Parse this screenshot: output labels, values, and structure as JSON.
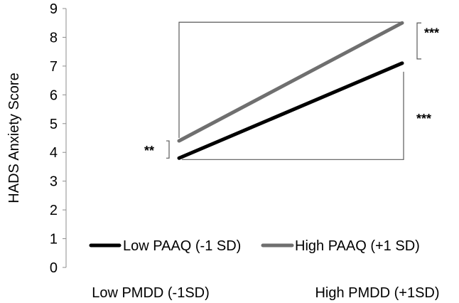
{
  "chart_data": {
    "type": "line",
    "title": "",
    "xlabel": "",
    "ylabel": "HADS Anxiety Score",
    "categories": [
      "Low PMDD (-1SD)",
      "High PMDD (+1SD)"
    ],
    "ylim": [
      0,
      9
    ],
    "yticks": [
      "0",
      "1",
      "2",
      "3",
      "4",
      "5",
      "6",
      "7",
      "8",
      "9"
    ],
    "series": [
      {
        "name": "Low PAAQ (-1 SD)",
        "values": [
          3.8,
          7.1
        ],
        "color": "#000000"
      },
      {
        "name": "High PAAQ (+1 SD)",
        "values": [
          4.4,
          8.5
        ],
        "color": "#6f6f6f"
      }
    ],
    "legend_position": "bottom",
    "annotations": {
      "low_pmdd_difference": "**",
      "high_pmdd_difference": "***",
      "low_paaq_slope": "***",
      "high_paaq_slope_bracket": ""
    },
    "grid": false
  }
}
